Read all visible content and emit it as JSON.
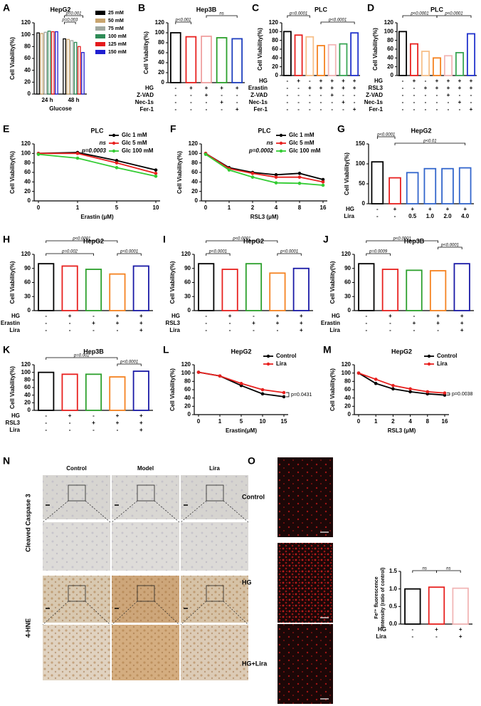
{
  "chart_data": [
    {
      "panel": "A",
      "type": "bar",
      "title": "HepG2",
      "ylabel": "Cell Viability(%)",
      "xlabel": "Glucose",
      "categories": [
        "24 h",
        "48 h"
      ],
      "series": [
        {
          "name": "25 mM",
          "color": "#000000",
          "values": [
            103,
            93
          ]
        },
        {
          "name": "50 mM",
          "color": "#c8a46e",
          "values": [
            102,
            92
          ]
        },
        {
          "name": "75 mM",
          "color": "#a0a8a0",
          "values": [
            104,
            90
          ]
        },
        {
          "name": "100 mM",
          "color": "#2e8b57",
          "values": [
            106,
            87
          ]
        },
        {
          "name": "125 mM",
          "color": "#e41a1c",
          "values": [
            105,
            80
          ]
        },
        {
          "name": "150 mM",
          "color": "#1f1fd1",
          "values": [
            105,
            70
          ]
        }
      ],
      "ylim": [
        0,
        120
      ],
      "yticks": [
        0,
        20,
        40,
        60,
        80,
        100,
        120
      ],
      "annotations": [
        "p=0.001",
        "p=0.003"
      ]
    },
    {
      "panel": "B",
      "type": "bar",
      "title": "Hep3B",
      "ylabel": "Cell Viability(%)",
      "values": [
        100,
        92,
        93,
        90,
        88
      ],
      "colors": [
        "#000000",
        "#e8211f",
        "#f0a0a0",
        "#2ca02c",
        "#1f3fbf"
      ],
      "ylim": [
        0,
        120
      ],
      "yticks": [
        0,
        20,
        40,
        60,
        80,
        100,
        120
      ],
      "annotations": [
        "p<0.001",
        "ns"
      ],
      "conditions": [
        {
          "label": "HG",
          "marks": [
            "-",
            "+",
            "+",
            "+",
            "+"
          ]
        },
        {
          "label": "Z-VAD",
          "marks": [
            "-",
            "-",
            "+",
            "-",
            "-"
          ]
        },
        {
          "label": "Nec-1s",
          "marks": [
            "-",
            "-",
            "-",
            "+",
            "-"
          ]
        },
        {
          "label": "Fer-1",
          "marks": [
            "-",
            "-",
            "-",
            "-",
            "+"
          ]
        }
      ]
    },
    {
      "panel": "C",
      "type": "bar",
      "title": "PLC",
      "ylabel": "Cell Viability(%)",
      "values": [
        100,
        92,
        88,
        68,
        70,
        72,
        97
      ],
      "colors": [
        "#000000",
        "#e8211f",
        "#f7c08a",
        "#f58220",
        "#f2b6b6",
        "#3aa655",
        "#2233cc"
      ],
      "ylim": [
        0,
        120
      ],
      "yticks": [
        0,
        20,
        40,
        60,
        80,
        100,
        120
      ],
      "annotations": [
        "p=0.0001",
        "p<0.0001"
      ],
      "conditions": [
        {
          "label": "HG",
          "marks": [
            "-",
            "+",
            "-",
            "+",
            "+",
            "+",
            "+"
          ]
        },
        {
          "label": "Erastin",
          "marks": [
            "-",
            "-",
            "+",
            "+",
            "+",
            "+",
            "+"
          ]
        },
        {
          "label": "Z-VAD",
          "marks": [
            "-",
            "-",
            "-",
            "-",
            "+",
            "-",
            "-"
          ]
        },
        {
          "label": "Nec-1s",
          "marks": [
            "-",
            "-",
            "-",
            "-",
            "-",
            "+",
            "-"
          ]
        },
        {
          "label": "Fer-1",
          "marks": [
            "-",
            "-",
            "-",
            "-",
            "-",
            "-",
            "+"
          ]
        }
      ]
    },
    {
      "panel": "D",
      "type": "bar",
      "title": "PLC",
      "ylabel": "Cell Viability(%)",
      "values": [
        100,
        72,
        55,
        40,
        45,
        52,
        95
      ],
      "colors": [
        "#000000",
        "#e8211f",
        "#f7c08a",
        "#f58220",
        "#f2b6b6",
        "#3aa655",
        "#2233cc"
      ],
      "ylim": [
        0,
        120
      ],
      "yticks": [
        0,
        20,
        40,
        60,
        80,
        100,
        120
      ],
      "annotations": [
        "p<0.0001",
        "p<0.0001"
      ],
      "conditions": [
        {
          "label": "HG",
          "marks": [
            "-",
            "+",
            "-",
            "+",
            "+",
            "+",
            "+"
          ]
        },
        {
          "label": "RSL3",
          "marks": [
            "-",
            "-",
            "+",
            "+",
            "+",
            "+",
            "+"
          ]
        },
        {
          "label": "Z-VAD",
          "marks": [
            "-",
            "-",
            "-",
            "-",
            "+",
            "-",
            "-"
          ]
        },
        {
          "label": "Nec-1s",
          "marks": [
            "-",
            "-",
            "-",
            "-",
            "-",
            "+",
            "-"
          ]
        },
        {
          "label": "Fer-1",
          "marks": [
            "-",
            "-",
            "-",
            "-",
            "-",
            "-",
            "+"
          ]
        }
      ]
    },
    {
      "panel": "E",
      "type": "line",
      "title": "PLC",
      "ylabel": "Cell Viability(%)",
      "xlabel": "Erastin (μM)",
      "categories": [
        "0",
        "1",
        "5",
        "10"
      ],
      "series": [
        {
          "name": "Glc 1 mM",
          "color": "#000000",
          "values": [
            100,
            102,
            85,
            65
          ]
        },
        {
          "name": "Glc 5 mM",
          "color": "#e8211f",
          "values": [
            100,
            100,
            80,
            58
          ]
        },
        {
          "name": "Glc 100 mM",
          "color": "#33cc33",
          "values": [
            98,
            90,
            70,
            52
          ]
        }
      ],
      "ylim": [
        0,
        120
      ],
      "yticks": [
        0,
        20,
        40,
        60,
        80,
        100,
        120
      ],
      "annotations": [
        "ns",
        "p=0.0003"
      ]
    },
    {
      "panel": "F",
      "type": "line",
      "title": "PLC",
      "ylabel": "Cell Viability(%)",
      "xlabel": "RSL3 (μM)",
      "categories": [
        "0",
        "1",
        "2",
        "4",
        "8",
        "16"
      ],
      "series": [
        {
          "name": "Glc 1 mM",
          "color": "#000000",
          "values": [
            100,
            70,
            60,
            55,
            58,
            45
          ]
        },
        {
          "name": "Glc 5 mM",
          "color": "#e8211f",
          "values": [
            100,
            68,
            58,
            50,
            50,
            40
          ]
        },
        {
          "name": "Glc 100 mM",
          "color": "#33cc33",
          "values": [
            98,
            65,
            50,
            38,
            37,
            33
          ]
        }
      ],
      "ylim": [
        0,
        120
      ],
      "yticks": [
        0,
        20,
        40,
        60,
        80,
        100,
        120
      ],
      "annotations": [
        "ns",
        "p=0.0002"
      ]
    },
    {
      "panel": "G",
      "type": "bar",
      "title": "HepG2",
      "ylabel": "Cell Viability(%)",
      "values": [
        105,
        65,
        78,
        88,
        88,
        90
      ],
      "colors": [
        "#000000",
        "#e8211f",
        "#3366cc",
        "#3366cc",
        "#3366cc",
        "#3366cc"
      ],
      "ylim": [
        0,
        150
      ],
      "yticks": [
        0,
        50,
        100,
        150
      ],
      "annotations": [
        "p<0.0001",
        "p<0.01"
      ],
      "conditions": [
        {
          "label": "HG",
          "marks": [
            "-",
            "+",
            "+",
            "+",
            "+",
            "+"
          ]
        },
        {
          "label": "Lira",
          "marks": [
            "-",
            "-",
            "0.5",
            "1.0",
            "2.0",
            "4.0"
          ]
        }
      ]
    },
    {
      "panel": "H",
      "type": "bar",
      "title": "HepG2",
      "ylabel": "Cell Viability(%)",
      "values": [
        100,
        95,
        88,
        78,
        95
      ],
      "colors": [
        "#000000",
        "#e8211f",
        "#2ca02c",
        "#f58220",
        "#1a1aa6"
      ],
      "ylim": [
        0,
        120
      ],
      "yticks": [
        0,
        30,
        60,
        90,
        120
      ],
      "annotations": [
        "p=0.002",
        "p<0.0001",
        "p<0.0001"
      ],
      "conditions": [
        {
          "label": "HG",
          "marks": [
            "-",
            "+",
            "-",
            "+",
            "+"
          ]
        },
        {
          "label": "Erastin",
          "marks": [
            "-",
            "-",
            "+",
            "+",
            "+"
          ]
        },
        {
          "label": "Lira",
          "marks": [
            "-",
            "-",
            "-",
            "-",
            "+"
          ]
        }
      ]
    },
    {
      "panel": "I",
      "type": "bar",
      "title": "HepG2",
      "ylabel": "Cell Viability(%)",
      "values": [
        100,
        88,
        100,
        80,
        90
      ],
      "colors": [
        "#000000",
        "#e8211f",
        "#2ca02c",
        "#f58220",
        "#1a1aa6"
      ],
      "ylim": [
        0,
        120
      ],
      "yticks": [
        0,
        30,
        60,
        90,
        120
      ],
      "annotations": [
        "p<0.0001",
        "p<0.0001",
        "p<0.0001"
      ],
      "conditions": [
        {
          "label": "HG",
          "marks": [
            "-",
            "+",
            "-",
            "+",
            "+"
          ]
        },
        {
          "label": "RSL3",
          "marks": [
            "-",
            "-",
            "+",
            "+",
            "+"
          ]
        },
        {
          "label": "Lira",
          "marks": [
            "-",
            "-",
            "-",
            "-",
            "+"
          ]
        }
      ]
    },
    {
      "panel": "J",
      "type": "bar",
      "title": "Hep3B",
      "ylabel": "Cell Viability(%)",
      "values": [
        100,
        88,
        86,
        85,
        100
      ],
      "colors": [
        "#000000",
        "#e8211f",
        "#2ca02c",
        "#f58220",
        "#1a1aa6"
      ],
      "ylim": [
        0,
        120
      ],
      "yticks": [
        0,
        30,
        60,
        90,
        120
      ],
      "annotations": [
        "p=0.0009",
        "p<0.0001",
        "p<0.0001"
      ],
      "conditions": [
        {
          "label": "HG",
          "marks": [
            "-",
            "+",
            "-",
            "+",
            "+"
          ]
        },
        {
          "label": "Erastin",
          "marks": [
            "-",
            "-",
            "+",
            "+",
            "+"
          ]
        },
        {
          "label": "Lira",
          "marks": [
            "-",
            "-",
            "-",
            "-",
            "+"
          ]
        }
      ]
    },
    {
      "panel": "K",
      "type": "bar",
      "title": "Hep3B",
      "ylabel": "Cell Viability(%)",
      "values": [
        100,
        95,
        95,
        88,
        103
      ],
      "colors": [
        "#000000",
        "#e8211f",
        "#2ca02c",
        "#f58220",
        "#1a1aa6"
      ],
      "ylim": [
        0,
        120
      ],
      "yticks": [
        0,
        20,
        40,
        60,
        80,
        100,
        120
      ],
      "annotations": [
        "p=0.002",
        "p<0.0001"
      ],
      "conditions": [
        {
          "label": "HG",
          "marks": [
            "-",
            "+",
            "-",
            "+",
            "+"
          ]
        },
        {
          "label": "RSL3",
          "marks": [
            "-",
            "-",
            "+",
            "+",
            "+"
          ]
        },
        {
          "label": "Lira",
          "marks": [
            "-",
            "-",
            "-",
            "-",
            "+"
          ]
        }
      ]
    },
    {
      "panel": "L",
      "type": "line",
      "title": "HepG2",
      "ylabel": "Cell Viability(%)",
      "xlabel": "Erastin(μM)",
      "categories": [
        "0",
        "1",
        "5",
        "10",
        "15"
      ],
      "series": [
        {
          "name": "Control",
          "color": "#000000",
          "values": [
            102,
            93,
            70,
            50,
            43
          ]
        },
        {
          "name": "Lira",
          "color": "#e8211f",
          "values": [
            102,
            93,
            75,
            60,
            53
          ]
        }
      ],
      "ylim": [
        0,
        120
      ],
      "yticks": [
        0,
        20,
        40,
        60,
        80,
        100,
        120
      ],
      "annotations": [
        "p=0.0431"
      ]
    },
    {
      "panel": "M",
      "type": "line",
      "title": "HepG2",
      "ylabel": "Cell Viability(%)",
      "xlabel": "RSL3 (μM)",
      "categories": [
        "0",
        "1",
        "2",
        "4",
        "8",
        "16"
      ],
      "series": [
        {
          "name": "Control",
          "color": "#000000",
          "values": [
            100,
            75,
            62,
            55,
            50,
            47
          ]
        },
        {
          "name": "Lira",
          "color": "#e8211f",
          "values": [
            100,
            85,
            70,
            62,
            55,
            52
          ]
        }
      ],
      "ylim": [
        0,
        120
      ],
      "yticks": [
        0,
        20,
        40,
        60,
        80,
        100,
        120
      ],
      "annotations": [
        "p=0.0038"
      ]
    },
    {
      "type": "bar",
      "ylabel": [
        "Fe²⁺ fluorescence",
        "Intensity (ratio of control)"
      ],
      "values": [
        1.0,
        1.05,
        1.02
      ],
      "colors": [
        "#000000",
        "#e8211f",
        "#f2b6b6"
      ],
      "ylim": [
        0,
        1.5
      ],
      "yticks": [
        {
          "value": 0,
          "label": "0.0"
        },
        0.5,
        {
          "value": 1,
          "label": "1.0"
        },
        1.5
      ],
      "annotations": [
        "ns",
        "ns"
      ],
      "conditions": [
        {
          "label": "HG",
          "marks": [
            "-",
            "+",
            "+"
          ]
        },
        {
          "label": "Lira",
          "marks": [
            "-",
            "-",
            "+"
          ]
        }
      ]
    }
  ],
  "figure_n": {
    "panel": "N",
    "columns": [
      "Control",
      "Model",
      "Lira"
    ],
    "rows": [
      "Cleaved Caspase 3",
      "4-HNE"
    ]
  },
  "figure_o": {
    "panel": "O",
    "rows": [
      "Control",
      "HG",
      "HG+Lira"
    ]
  }
}
